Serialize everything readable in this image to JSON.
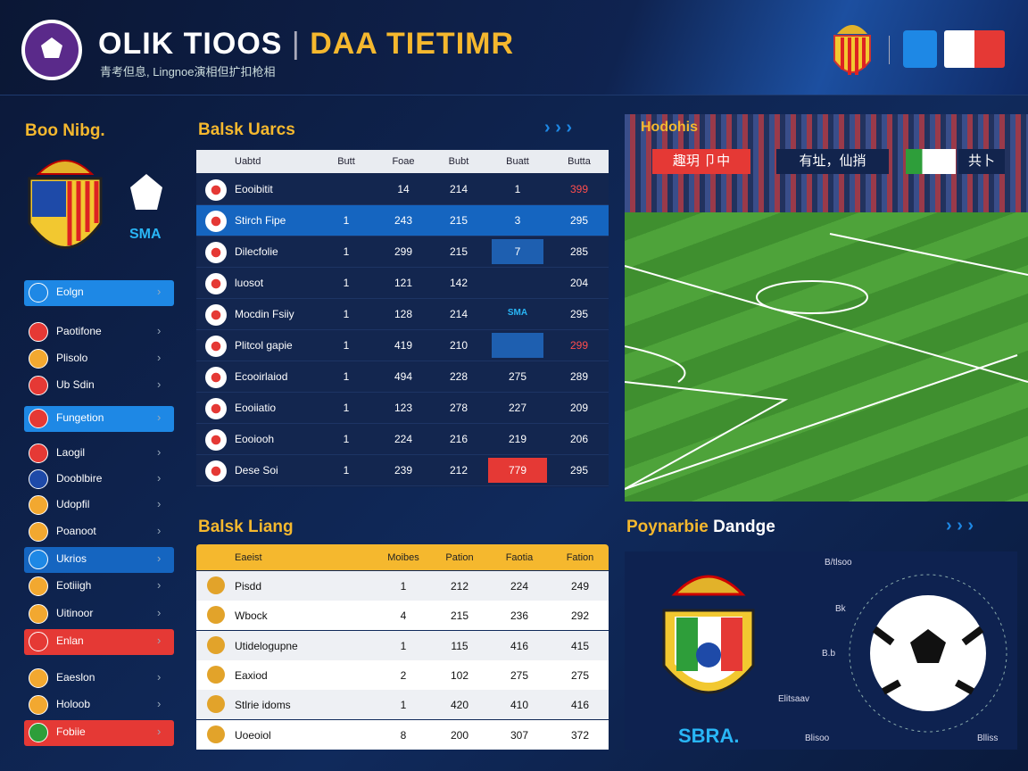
{
  "header": {
    "title_left": "OLIK TIOOS",
    "title_right": "DAA TIETIMR",
    "subtitle": "青考但息, Lingnoe演相但扩扣枪相"
  },
  "sidebar": {
    "title": "Boo Nibg.",
    "badge": "SMA",
    "items": [
      "Eolgn",
      "Paotifone",
      "Plisolo",
      "Ub Sdin",
      "Fungetion",
      "Laogil",
      "Dooblbire",
      "Udopfil",
      "Poanoot",
      "Ukrios",
      "Eotiiigh",
      "Uitinoor",
      "Enlan",
      "Eaeslon",
      "Holoob",
      "Fobiie"
    ]
  },
  "standings": {
    "title": "Balsk Uarcs",
    "columns": [
      "Uabtd",
      "Butt",
      "Foae",
      "Bubt",
      "Buatt",
      "Butta"
    ],
    "rows": [
      [
        "Eooibitit",
        null,
        "14",
        "214",
        "1",
        "399"
      ],
      [
        "Stirch Fipe",
        "1",
        "243",
        "215",
        "3",
        "295"
      ],
      [
        "Dilecfolie",
        "1",
        "299",
        "215",
        "7",
        "285"
      ],
      [
        "luosot",
        "1",
        "121",
        "142",
        null,
        "204"
      ],
      [
        "Mocdin Fsiiy",
        "1",
        "128",
        "214",
        "SMA",
        "295"
      ],
      [
        "Plitcol gapie",
        "1",
        "419",
        "210",
        null,
        "299"
      ],
      [
        "Ecooirlaiod",
        "1",
        "494",
        "228",
        "275",
        "289"
      ],
      [
        "Eooiiatio",
        "1",
        "123",
        "278",
        "227",
        "209"
      ],
      [
        "Eooiooh",
        "1",
        "224",
        "216",
        "219",
        "206"
      ],
      [
        "Dese Soi",
        "1",
        "239",
        "212",
        "779",
        "295"
      ]
    ]
  },
  "stadium": {
    "title": "Hodohis",
    "tags": [
      "趣玥 卩中",
      "有址，仙捎",
      "共卜"
    ]
  },
  "league": {
    "title": "Balsk Liang",
    "columns": [
      "Eaeist",
      "Moibes",
      "Pation",
      "Faotia",
      "Fation"
    ],
    "rows": [
      [
        "Pisdd",
        "1",
        "212",
        "224",
        "249"
      ],
      [
        "Wbock",
        "4",
        "215",
        "236",
        "292"
      ],
      [
        "Utidelogupne",
        "1",
        "115",
        "416",
        "415"
      ],
      [
        "Eaxiod",
        "2",
        "102",
        "275",
        "275"
      ],
      [
        "Stlrie idoms",
        "1",
        "420",
        "410",
        "416"
      ],
      [
        "Uoeoiol",
        "8",
        "200",
        "307",
        "372"
      ]
    ]
  },
  "profile": {
    "title_left": "Poynarbie",
    "title_right": "Dandge",
    "badge": "SBRA.",
    "stats": [
      "B/tlsoo",
      "Bk",
      "B.b",
      "Elitsaav",
      "Blisoo",
      "Blliss"
    ]
  }
}
